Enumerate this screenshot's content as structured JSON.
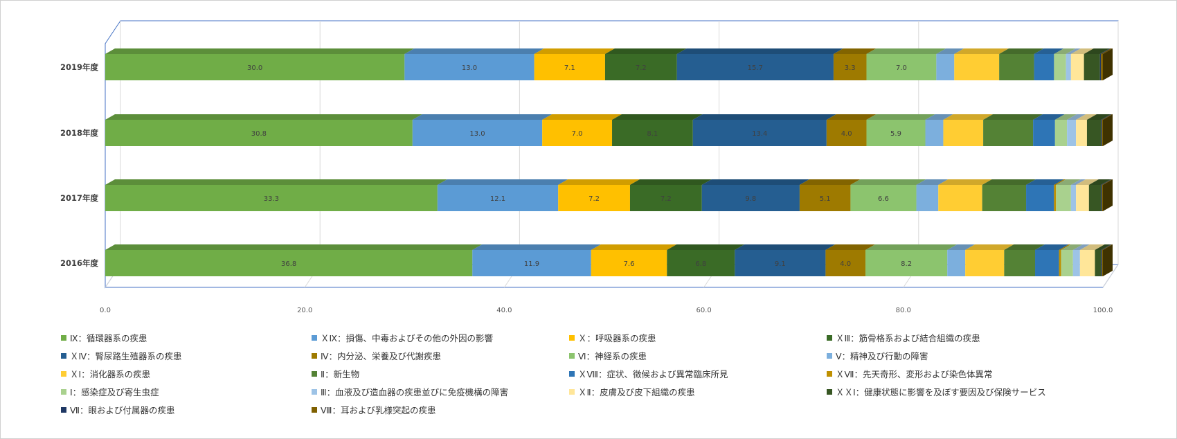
{
  "chart_data": {
    "type": "bar",
    "orientation": "horizontal",
    "stacked": true,
    "categories": [
      "2019年度",
      "2018年度",
      "2017年度",
      "2016年度"
    ],
    "xlim": [
      0,
      100
    ],
    "xticks": [
      "0.0",
      "20.0",
      "40.0",
      "60.0",
      "80.0",
      "100.0"
    ],
    "grid": true,
    "legend_position": "bottom",
    "series": [
      {
        "name": "Ⅸ：循環器系の疾患",
        "color": "#70AD47",
        "values": [
          30.0,
          30.8,
          33.3,
          36.8
        ],
        "labels": [
          "30.0",
          "30.8",
          "33.3",
          "36.8"
        ]
      },
      {
        "name": "ＸⅨ：損傷、中毒およびその他の外因の影響",
        "color": "#5B9BD5",
        "values": [
          13.0,
          13.0,
          12.1,
          11.9
        ],
        "labels": [
          "13.0",
          "13.0",
          "12.1",
          "11.9"
        ]
      },
      {
        "name": "Ｘ：呼吸器系の疾患",
        "color": "#FFC000",
        "values": [
          7.1,
          7.0,
          7.2,
          7.6
        ],
        "labels": [
          "7.1",
          "7.0",
          "7.2",
          "7.6"
        ]
      },
      {
        "name": "ＸⅢ：筋骨格系および結合組織の疾患",
        "color": "#3A6B26",
        "values": [
          7.2,
          8.1,
          7.2,
          6.8
        ],
        "labels": [
          "7.2",
          "8.1",
          "7.2",
          "6.8"
        ]
      },
      {
        "name": "ＸⅣ：腎尿路生殖器系の疾患",
        "color": "#255E91",
        "values": [
          15.7,
          13.4,
          9.8,
          9.1
        ],
        "labels": [
          "15.7",
          "13.4",
          "9.8",
          "9.1"
        ]
      },
      {
        "name": "Ⅳ：内分泌、栄養及び代謝疾患",
        "color": "#9E7A00",
        "values": [
          3.3,
          4.0,
          5.1,
          4.0
        ],
        "labels": [
          "3.3",
          "4.0",
          "5.1",
          "4.0"
        ]
      },
      {
        "name": "Ⅵ：神経系の疾患",
        "color": "#8CC46E",
        "values": [
          7.0,
          5.9,
          6.6,
          8.2
        ],
        "labels": [
          "7.0",
          "5.9",
          "6.6",
          "8.2"
        ]
      },
      {
        "name": "Ⅴ：精神及び行動の障害",
        "color": "#7CAFDD",
        "values": [
          1.8,
          1.8,
          2.2,
          1.8
        ],
        "labels": [
          "",
          "",
          "",
          ""
        ]
      },
      {
        "name": "ＸⅠ：消化器系の疾患",
        "color": "#FFCD33",
        "values": [
          4.5,
          4.0,
          4.4,
          3.9
        ],
        "labels": [
          "",
          "",
          "",
          ""
        ]
      },
      {
        "name": "Ⅱ：新生物",
        "color": "#548235",
        "values": [
          3.5,
          5.0,
          4.4,
          3.1
        ],
        "labels": [
          "",
          "",
          "",
          ""
        ]
      },
      {
        "name": "ＸⅧ：症状、徴候および異常臨床所見",
        "color": "#2E75B6",
        "values": [
          2.0,
          2.2,
          2.8,
          2.4
        ],
        "labels": [
          "",
          "",
          "",
          ""
        ]
      },
      {
        "name": "ＸⅦ：先天奇形、変形および染色体異常",
        "color": "#BF9000",
        "values": [
          0.0,
          0.0,
          0.2,
          0.2
        ],
        "labels": [
          "",
          "",
          "",
          ""
        ]
      },
      {
        "name": "Ⅰ：感染症及び寄生虫症",
        "color": "#A9D18E",
        "values": [
          1.2,
          1.2,
          1.5,
          1.2
        ],
        "labels": [
          "",
          "",
          "",
          ""
        ]
      },
      {
        "name": "Ⅲ：血液及び造血器の疾患並びに免疫機構の障害",
        "color": "#9DC3E6",
        "values": [
          0.5,
          0.9,
          0.5,
          0.7
        ],
        "labels": [
          "",
          "",
          "",
          ""
        ]
      },
      {
        "name": "ＸⅡ：皮膚及び皮下組織の疾患",
        "color": "#FFE699",
        "values": [
          1.3,
          1.1,
          1.3,
          1.5
        ],
        "labels": [
          "",
          "",
          "",
          ""
        ]
      },
      {
        "name": "ＸＸⅠ：健康状態に影響を及ぼす要因及び保険サービス",
        "color": "#375623",
        "values": [
          1.6,
          1.4,
          1.2,
          0.6
        ],
        "labels": [
          "",
          "",
          "",
          ""
        ]
      },
      {
        "name": "Ⅶ：眼および付属器の疾患",
        "color": "#1F3864",
        "values": [
          0.1,
          0.1,
          0.1,
          0.1
        ],
        "labels": [
          "",
          "",
          "",
          ""
        ]
      },
      {
        "name": "Ⅷ：耳および乳様突起の疾患",
        "color": "#7F6000",
        "values": [
          0.2,
          0.1,
          0.1,
          0.1
        ],
        "labels": [
          "",
          "",
          "",
          ""
        ]
      }
    ]
  }
}
